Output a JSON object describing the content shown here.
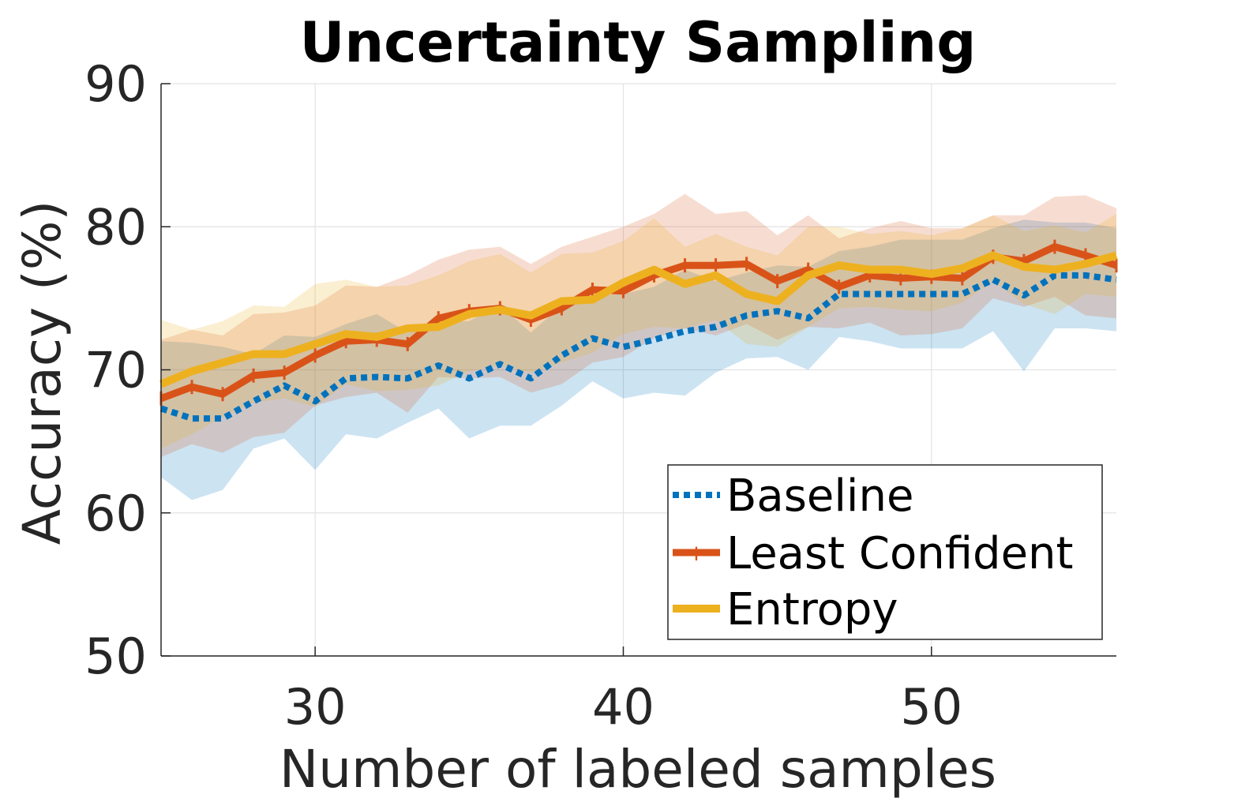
{
  "chart_data": {
    "type": "line",
    "title": "Uncertainty Sampling",
    "xlabel": "Number of labeled samples",
    "ylabel": "Accuracy (%)",
    "xlim": [
      25,
      56
    ],
    "ylim": [
      50,
      90
    ],
    "xticks": [
      30,
      40,
      50
    ],
    "yticks": [
      50,
      60,
      70,
      80,
      90
    ],
    "grid": true,
    "legend_position": "bottom-right",
    "x": [
      25,
      26,
      27,
      28,
      29,
      30,
      31,
      32,
      33,
      34,
      35,
      36,
      37,
      38,
      39,
      40,
      41,
      42,
      43,
      44,
      45,
      46,
      47,
      48,
      49,
      50,
      51,
      52,
      53,
      54,
      55,
      56
    ],
    "series": [
      {
        "name": "Baseline",
        "color": "#0072BD",
        "style": "dotted",
        "values": [
          67.3,
          66.6,
          66.6,
          67.8,
          68.9,
          67.8,
          69.4,
          69.5,
          69.4,
          70.3,
          69.4,
          70.4,
          69.4,
          71.0,
          72.2,
          71.6,
          72.1,
          72.7,
          73.0,
          73.8,
          74.1,
          73.6,
          75.3,
          75.3,
          75.3,
          75.3,
          75.3,
          76.3,
          75.2,
          76.6,
          76.6,
          76.3
        ],
        "lower": [
          62.5,
          60.9,
          61.6,
          64.5,
          65.2,
          63.0,
          65.5,
          65.2,
          66.3,
          67.3,
          65.2,
          66.1,
          66.1,
          67.5,
          69.2,
          68.0,
          68.4,
          68.2,
          69.8,
          70.8,
          70.9,
          70.0,
          72.3,
          72.0,
          71.5,
          71.5,
          71.5,
          72.7,
          69.9,
          72.9,
          72.9,
          72.7
        ],
        "upper": [
          72.0,
          71.9,
          71.6,
          71.1,
          72.4,
          72.3,
          73.2,
          73.9,
          72.6,
          73.3,
          73.4,
          74.5,
          72.6,
          74.5,
          75.2,
          75.3,
          75.8,
          77.0,
          76.2,
          76.8,
          77.3,
          77.2,
          78.3,
          78.6,
          79.1,
          79.1,
          79.1,
          79.9,
          80.5,
          80.3,
          80.3,
          79.9
        ]
      },
      {
        "name": "Least Confident",
        "color": "#D95319",
        "style": "solid-marker",
        "values": [
          68.0,
          68.8,
          68.3,
          69.6,
          69.8,
          71.0,
          72.0,
          72.1,
          71.8,
          73.6,
          74.1,
          74.3,
          73.5,
          74.3,
          75.6,
          75.5,
          76.6,
          77.3,
          77.3,
          77.4,
          76.2,
          77.0,
          75.8,
          76.6,
          76.4,
          76.5,
          76.4,
          77.9,
          77.6,
          78.6,
          78.0,
          77.3
        ],
        "lower": [
          63.9,
          64.8,
          64.2,
          65.3,
          65.6,
          67.5,
          68.1,
          68.4,
          67.0,
          69.5,
          69.4,
          69.5,
          68.4,
          69.0,
          70.5,
          70.9,
          72.2,
          72.9,
          72.4,
          73.2,
          72.1,
          73.0,
          72.9,
          73.3,
          72.4,
          72.5,
          72.9,
          75.0,
          74.4,
          75.1,
          73.8,
          73.6
        ],
        "upper": [
          72.1,
          72.8,
          72.4,
          73.9,
          74.0,
          74.5,
          75.9,
          75.8,
          76.6,
          77.7,
          78.4,
          78.6,
          77.4,
          78.6,
          79.3,
          80.0,
          80.9,
          82.3,
          80.9,
          81.1,
          79.4,
          80.8,
          79.2,
          79.9,
          80.4,
          79.9,
          79.9,
          80.8,
          80.8,
          82.1,
          82.2,
          81.3
        ]
      },
      {
        "name": "Entropy",
        "color": "#EDB120",
        "style": "solid",
        "values": [
          69.0,
          69.9,
          70.5,
          71.1,
          71.1,
          71.8,
          72.5,
          72.3,
          72.9,
          73.0,
          73.9,
          74.2,
          73.8,
          74.8,
          74.9,
          76.1,
          77.0,
          76.0,
          76.6,
          75.3,
          74.8,
          76.6,
          77.3,
          77.0,
          77.0,
          76.7,
          77.1,
          78.0,
          77.2,
          77.0,
          77.4,
          78.0
        ],
        "lower": [
          64.5,
          65.5,
          66.7,
          67.7,
          68.0,
          67.4,
          69.0,
          68.5,
          68.6,
          68.9,
          69.9,
          70.3,
          69.8,
          70.5,
          71.2,
          72.5,
          73.0,
          72.9,
          73.5,
          71.8,
          71.6,
          73.0,
          74.3,
          74.4,
          74.2,
          74.1,
          74.7,
          76.2,
          74.6,
          73.9,
          75.3,
          75.1
        ],
        "upper": [
          73.5,
          72.8,
          73.4,
          74.5,
          74.4,
          76.0,
          76.3,
          75.8,
          75.9,
          76.6,
          77.6,
          78.1,
          76.8,
          78.1,
          78.2,
          79.0,
          80.6,
          78.6,
          79.5,
          78.6,
          78.0,
          80.0,
          80.0,
          79.5,
          79.7,
          79.4,
          79.9,
          80.8,
          79.7,
          80.1,
          79.6,
          80.9
        ]
      }
    ]
  }
}
